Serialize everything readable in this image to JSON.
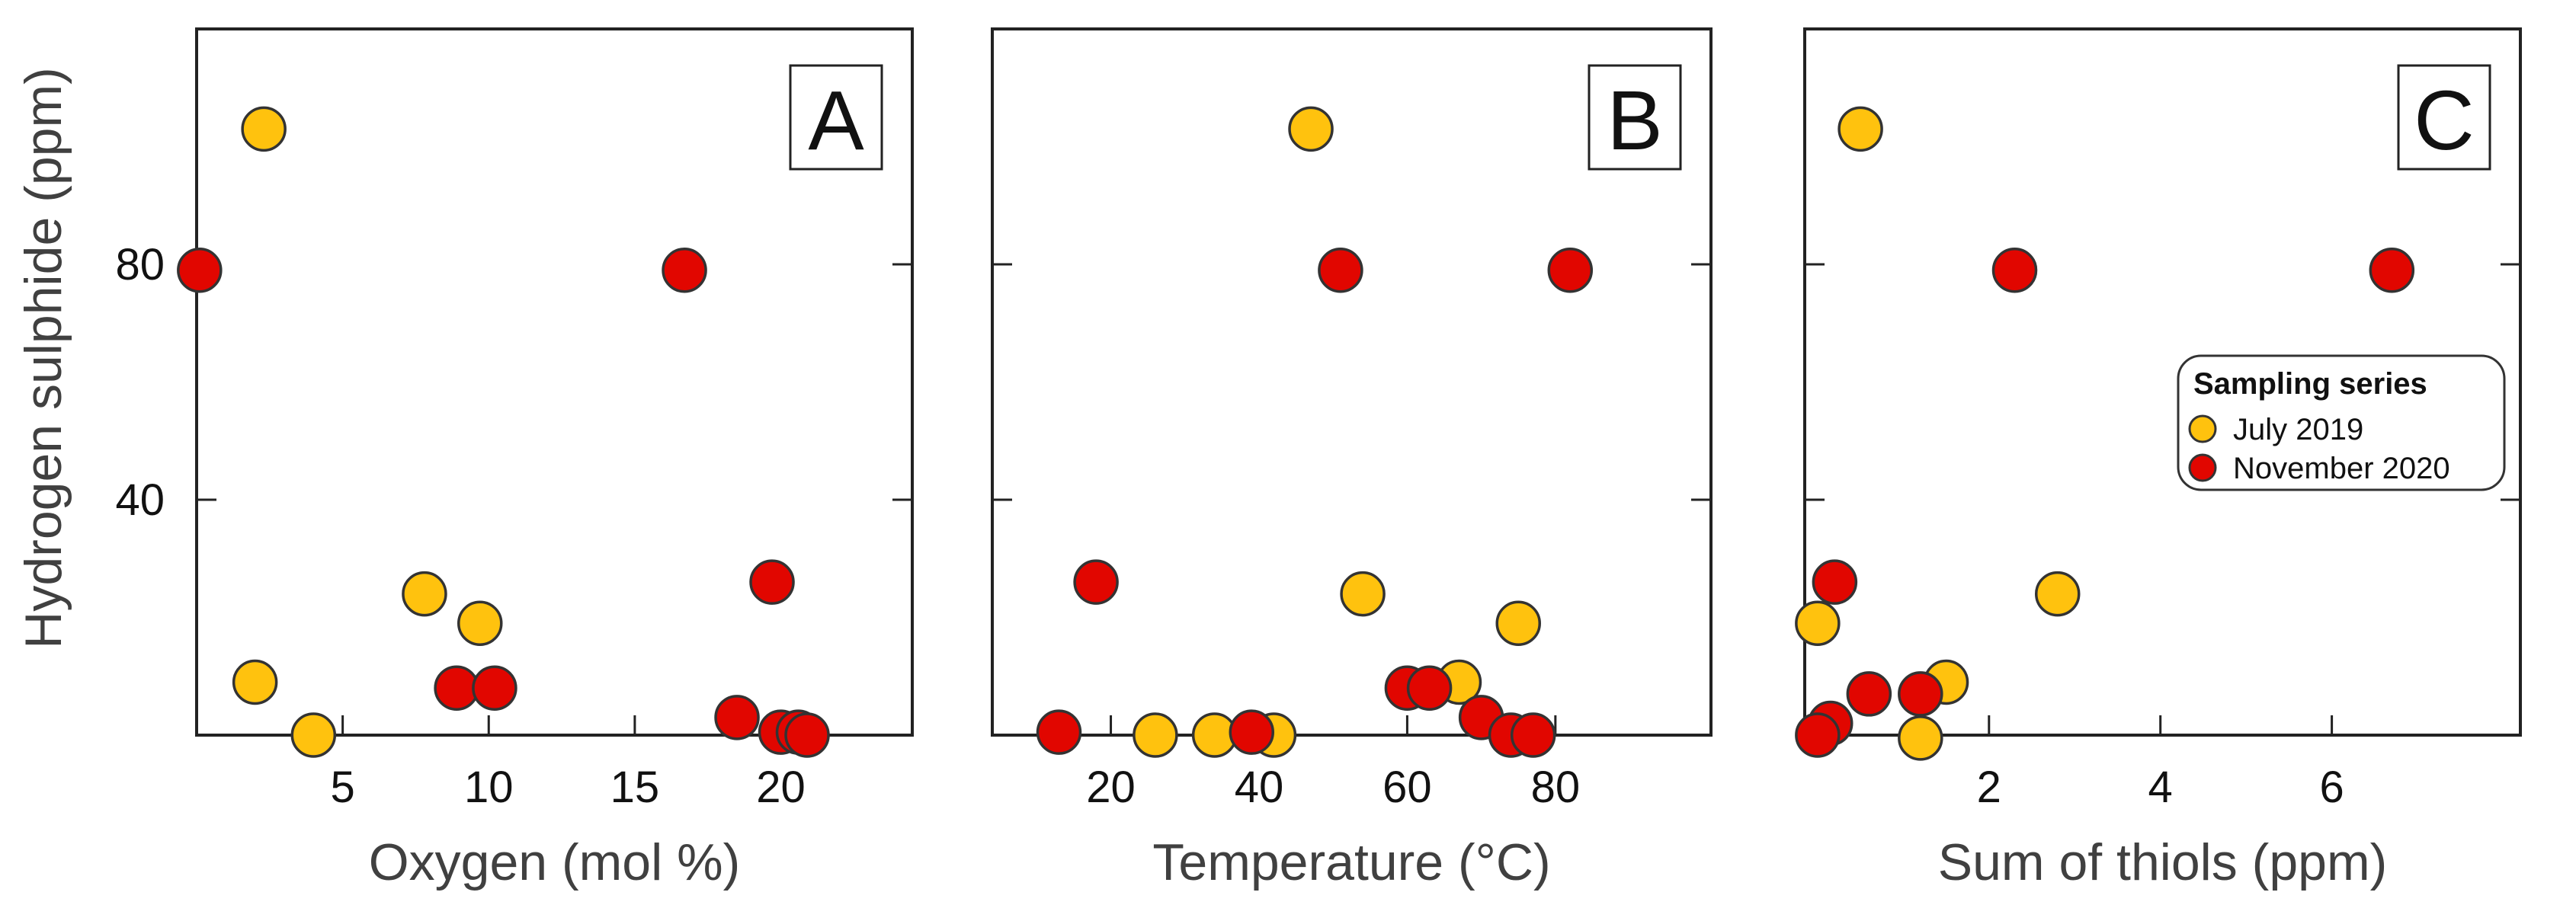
{
  "figure": {
    "ylabel": "Hydrogen sulphide  (ppm)",
    "marker_colors": {
      "July 2019": "#FFC20E",
      "November 2020": "#E10600"
    },
    "marker_edge_color": "#333333"
  },
  "legend": {
    "title": "Sampling series",
    "entries": [
      "July 2019",
      "November 2020"
    ]
  },
  "chart_data": [
    {
      "type": "scatter",
      "panel_label": "A",
      "xlabel": "Oxygen (mol %)",
      "ylabel": "Hydrogen sulphide  (ppm)",
      "xlim": [
        0,
        24.5
      ],
      "ylim": [
        0,
        120
      ],
      "xticks": [
        5,
        10,
        15,
        20
      ],
      "yticks": [
        40,
        80
      ],
      "series": [
        {
          "name": "July 2019",
          "points": [
            [
              2.3,
              103
            ],
            [
              2.0,
              9
            ],
            [
              4.0,
              0
            ],
            [
              7.8,
              24
            ],
            [
              9.7,
              19
            ]
          ]
        },
        {
          "name": "November 2020",
          "points": [
            [
              0.1,
              79
            ],
            [
              8.9,
              8
            ],
            [
              10.2,
              8
            ],
            [
              16.7,
              79
            ],
            [
              18.5,
              3
            ],
            [
              19.7,
              26
            ],
            [
              20.0,
              0.5
            ],
            [
              20.6,
              0.5
            ],
            [
              20.9,
              0
            ]
          ]
        }
      ]
    },
    {
      "type": "scatter",
      "panel_label": "B",
      "xlabel": "Temperature (°C)",
      "ylabel": "",
      "xlim": [
        4,
        101
      ],
      "ylim": [
        0,
        120
      ],
      "xticks": [
        20,
        40,
        60,
        80
      ],
      "yticks": [
        40,
        80
      ],
      "series": [
        {
          "name": "July 2019",
          "points": [
            [
              47,
              103
            ],
            [
              54,
              24
            ],
            [
              67,
              9
            ],
            [
              75,
              19
            ],
            [
              26,
              0
            ],
            [
              34,
              0
            ],
            [
              42,
              0
            ]
          ]
        },
        {
          "name": "November 2020",
          "points": [
            [
              18,
              26
            ],
            [
              13,
              0.5
            ],
            [
              39,
              0.5
            ],
            [
              51,
              79
            ],
            [
              82,
              79
            ],
            [
              60,
              8
            ],
            [
              63,
              8
            ],
            [
              70,
              3
            ],
            [
              74,
              0
            ],
            [
              77,
              0
            ]
          ]
        }
      ]
    },
    {
      "type": "scatter",
      "panel_label": "C",
      "xlabel": "Sum of thiols (ppm)",
      "ylabel": "",
      "xlim": [
        -0.15,
        8.2
      ],
      "ylim": [
        0,
        120
      ],
      "xticks": [
        2,
        4,
        6
      ],
      "yticks": [
        40,
        80
      ],
      "series": [
        {
          "name": "July 2019",
          "points": [
            [
              0.5,
              103
            ],
            [
              0.0,
              19
            ],
            [
              1.5,
              9
            ],
            [
              2.8,
              24
            ],
            [
              1.2,
              -0.5
            ]
          ]
        },
        {
          "name": "November 2020",
          "points": [
            [
              2.3,
              79
            ],
            [
              6.7,
              79
            ],
            [
              0.2,
              26
            ],
            [
              0.6,
              7
            ],
            [
              1.2,
              7
            ],
            [
              0.15,
              2
            ],
            [
              0.0,
              0
            ]
          ]
        }
      ]
    }
  ]
}
